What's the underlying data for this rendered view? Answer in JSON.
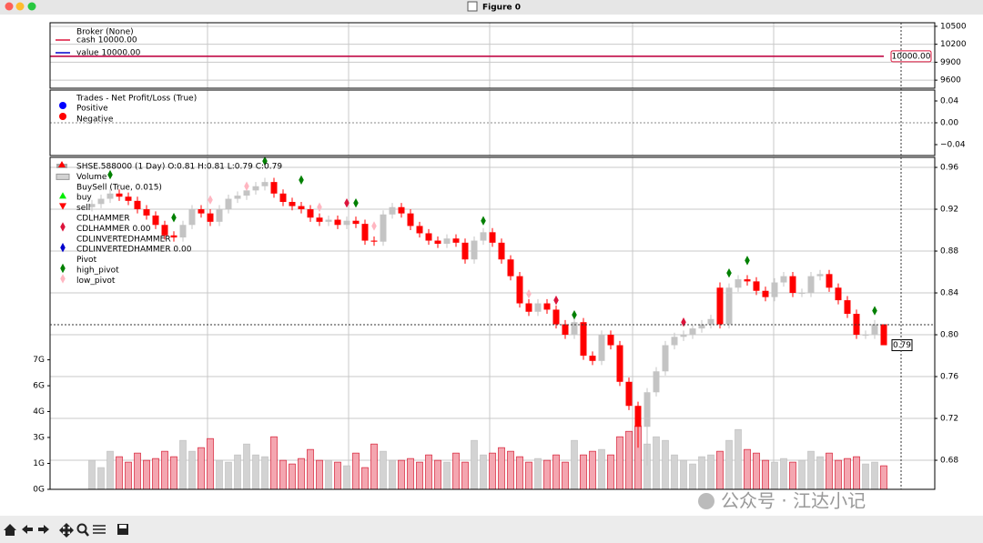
{
  "window": {
    "title": "Figure 0"
  },
  "watermark": "公众号 · 江达小记",
  "chart_data": [
    {
      "type": "line",
      "title": "Broker (None)",
      "xlim": [
        -4.6,
        92.6
      ],
      "xticks": [
        12.7,
        28.2,
        43.7,
        59.4,
        74.9
      ],
      "ylim": [
        9465,
        10560
      ],
      "yticks": [
        9600,
        9900,
        10200,
        10500
      ],
      "grid": true,
      "x": [
        0,
        87
      ],
      "series": [
        {
          "name": "cash 10000.00",
          "color": "#dc143c",
          "values": [
            10000,
            10000
          ]
        },
        {
          "name": "value 10000.00",
          "color": "#0000cc",
          "values": [
            10000,
            10000
          ]
        }
      ],
      "annotations": [
        {
          "value": 10000,
          "label": "10000.00"
        }
      ]
    },
    {
      "type": "scatter",
      "title": "Trades - Net Profit/Loss (True)",
      "xlim": [
        -4.6,
        92.6
      ],
      "xticks": [
        12.7,
        28.2,
        43.7,
        59.4,
        74.9
      ],
      "ylim": [
        -0.06,
        0.06
      ],
      "yticks": [
        {
          "value": -0.04,
          "label": "−0.04"
        },
        {
          "value": 0,
          "label": "0.00"
        },
        0.04
      ],
      "grid": false,
      "hline": 0,
      "series": [
        {
          "name": "Positive",
          "color": "#0000ff",
          "x": [],
          "values": []
        },
        {
          "name": "Negative",
          "color": "#ff0000",
          "x": [],
          "values": []
        }
      ]
    },
    {
      "type": "candlestick",
      "title": "SHSE.588000 (1 Day) O:0.81 H:0.81 L:0.79 C:0.79",
      "xlim": [
        -4.6,
        92.6
      ],
      "xticks": [
        12.7,
        28.2,
        43.7,
        59.4,
        74.9
      ],
      "ylim": [
        0.6522,
        0.9696
      ],
      "yticks": [
        0.68,
        0.72,
        0.76,
        {
          "value": 0.8,
          "label": "0.80"
        },
        0.84,
        0.88,
        0.92,
        0.96
      ],
      "grid": true,
      "y2lim": [
        0,
        18.3
      ],
      "y2ticks": [
        {
          "value": 0,
          "label": "0G"
        },
        {
          "value": 1.43,
          "label": "1G"
        },
        {
          "value": 2.86,
          "label": "3G"
        },
        {
          "value": 4.29,
          "label": "4G"
        },
        {
          "value": 5.71,
          "label": "6G"
        },
        {
          "value": 7.14,
          "label": "7G"
        }
      ],
      "colors": {
        "up": "#c4c4c4",
        "down": "#ff0000",
        "volume_up": "#d3d3d3",
        "volume_down": "#f4a6b0"
      },
      "ohlc": {
        "open": [
          0.922,
          0.925,
          0.93,
          0.935,
          0.932,
          0.928,
          0.92,
          0.914,
          0.905,
          0.895,
          0.893,
          0.905,
          0.92,
          0.916,
          0.908,
          0.92,
          0.93,
          0.933,
          0.938,
          0.942,
          0.946,
          0.935,
          0.927,
          0.923,
          0.92,
          0.912,
          0.908,
          0.91,
          0.905,
          0.909,
          0.906,
          0.89,
          0.889,
          0.915,
          0.922,
          0.916,
          0.904,
          0.897,
          0.89,
          0.887,
          0.892,
          0.888,
          0.872,
          0.89,
          0.898,
          0.888,
          0.872,
          0.856,
          0.83,
          0.822,
          0.83,
          0.824,
          0.81,
          0.8,
          0.812,
          0.78,
          0.775,
          0.8,
          0.79,
          0.755,
          0.732,
          0.712,
          0.745,
          0.765,
          0.79,
          0.798,
          0.8,
          0.806,
          0.81,
          0.845,
          0.81,
          0.845,
          0.853,
          0.851,
          0.842,
          0.836,
          0.85,
          0.856,
          0.84,
          0.84,
          0.856,
          0.858,
          0.845,
          0.833,
          0.82,
          0.8,
          0.8,
          0.81
        ],
        "high": [
          0.929,
          0.934,
          0.939,
          0.939,
          0.936,
          0.932,
          0.924,
          0.918,
          0.909,
          0.899,
          0.909,
          0.924,
          0.924,
          0.92,
          0.924,
          0.934,
          0.937,
          0.942,
          0.946,
          0.95,
          0.95,
          0.939,
          0.931,
          0.927,
          0.924,
          0.916,
          0.914,
          0.914,
          0.913,
          0.913,
          0.91,
          0.894,
          0.919,
          0.926,
          0.926,
          0.92,
          0.908,
          0.901,
          0.894,
          0.896,
          0.896,
          0.892,
          0.894,
          0.902,
          0.902,
          0.892,
          0.876,
          0.86,
          0.834,
          0.834,
          0.834,
          0.828,
          0.814,
          0.816,
          0.816,
          0.784,
          0.804,
          0.804,
          0.794,
          0.759,
          0.736,
          0.749,
          0.769,
          0.794,
          0.802,
          0.804,
          0.81,
          0.814,
          0.819,
          0.85,
          0.849,
          0.857,
          0.857,
          0.855,
          0.846,
          0.854,
          0.86,
          0.86,
          0.844,
          0.86,
          0.862,
          0.862,
          0.849,
          0.837,
          0.824,
          0.804,
          0.814,
          0.81
        ],
        "low": [
          0.918,
          0.921,
          0.926,
          0.928,
          0.924,
          0.916,
          0.91,
          0.901,
          0.891,
          0.889,
          0.889,
          0.901,
          0.912,
          0.904,
          0.904,
          0.916,
          0.926,
          0.929,
          0.934,
          0.938,
          0.931,
          0.923,
          0.919,
          0.916,
          0.908,
          0.904,
          0.904,
          0.901,
          0.901,
          0.902,
          0.886,
          0.885,
          0.885,
          0.911,
          0.912,
          0.9,
          0.893,
          0.886,
          0.883,
          0.883,
          0.884,
          0.868,
          0.868,
          0.886,
          0.884,
          0.868,
          0.852,
          0.826,
          0.818,
          0.818,
          0.82,
          0.806,
          0.796,
          0.796,
          0.776,
          0.771,
          0.771,
          0.786,
          0.751,
          0.728,
          0.692,
          0.675,
          0.741,
          0.761,
          0.786,
          0.794,
          0.796,
          0.802,
          0.806,
          0.806,
          0.806,
          0.841,
          0.847,
          0.838,
          0.832,
          0.832,
          0.846,
          0.836,
          0.836,
          0.836,
          0.852,
          0.841,
          0.829,
          0.816,
          0.796,
          0.796,
          0.796,
          0.79
        ],
        "close": [
          0.925,
          0.93,
          0.935,
          0.932,
          0.928,
          0.92,
          0.914,
          0.905,
          0.895,
          0.893,
          0.905,
          0.92,
          0.916,
          0.908,
          0.92,
          0.93,
          0.933,
          0.938,
          0.942,
          0.946,
          0.935,
          0.927,
          0.923,
          0.92,
          0.912,
          0.908,
          0.91,
          0.905,
          0.909,
          0.906,
          0.89,
          0.889,
          0.915,
          0.922,
          0.916,
          0.904,
          0.897,
          0.89,
          0.887,
          0.892,
          0.888,
          0.872,
          0.89,
          0.898,
          0.888,
          0.872,
          0.856,
          0.83,
          0.822,
          0.83,
          0.824,
          0.81,
          0.8,
          0.812,
          0.78,
          0.775,
          0.8,
          0.79,
          0.755,
          0.732,
          0.712,
          0.745,
          0.765,
          0.79,
          0.798,
          0.8,
          0.806,
          0.81,
          0.815,
          0.81,
          0.845,
          0.853,
          0.851,
          0.842,
          0.836,
          0.85,
          0.856,
          0.84,
          0.84,
          0.856,
          0.858,
          0.845,
          0.833,
          0.82,
          0.8,
          0.8,
          0.81,
          0.79
        ]
      },
      "volume": {
        "name": "Volume",
        "axis": "y2",
        "values": [
          1.6,
          1.2,
          2.1,
          1.8,
          1.5,
          2.0,
          1.6,
          1.7,
          2.1,
          1.8,
          2.7,
          2.1,
          2.3,
          2.8,
          1.6,
          1.5,
          1.9,
          2.5,
          1.9,
          1.8,
          2.9,
          1.6,
          1.4,
          1.7,
          2.2,
          1.6,
          1.6,
          1.5,
          1.3,
          2.0,
          1.2,
          2.5,
          2.1,
          1.6,
          1.6,
          1.7,
          1.5,
          1.9,
          1.6,
          1.5,
          2.0,
          1.5,
          2.7,
          1.9,
          2.0,
          2.3,
          2.1,
          1.8,
          1.5,
          1.7,
          1.6,
          1.9,
          1.5,
          2.7,
          1.9,
          2.1,
          2.2,
          1.9,
          2.9,
          3.2,
          3.5,
          2.5,
          2.9,
          2.7,
          1.9,
          1.6,
          1.4,
          1.8,
          1.9,
          2.1,
          2.7,
          3.3,
          2.2,
          2.0,
          1.6,
          1.5,
          1.7,
          1.5,
          1.6,
          2.1,
          1.8,
          2.0,
          1.6,
          1.7,
          1.8,
          1.4,
          1.5,
          1.3
        ]
      },
      "indicators": [
        {
          "name": "BuySell (True, 0.015)",
          "series": [
            {
              "name": "buy",
              "color": "#00ee00",
              "marker": "triangle-up",
              "x": [],
              "values": []
            },
            {
              "name": "sell",
              "color": "#ff0000",
              "marker": "triangle-down",
              "x": [],
              "values": []
            }
          ]
        },
        {
          "name": "CDLHAMMER",
          "series": [
            {
              "name": "CDLHAMMER 0.00",
              "color": "#dc143c",
              "marker": "diamond",
              "x": [
                28,
                51,
                65
              ],
              "values": [
                0.926,
                0.833,
                0.812
              ]
            }
          ]
        },
        {
          "name": "CDLINVERTEDHAMMER",
          "series": [
            {
              "name": "CDLINVERTEDHAMMER 0.00",
              "color": "#0000cd",
              "marker": "diamond",
              "x": [],
              "values": []
            }
          ]
        },
        {
          "name": "Pivot",
          "series": [
            {
              "name": "high_pivot",
              "color": "#008000",
              "marker": "diamond",
              "x": [
                2,
                9,
                19,
                23,
                29,
                43,
                53,
                70,
                72,
                86
              ],
              "values": [
                0.953,
                0.912,
                0.966,
                0.948,
                0.926,
                0.909,
                0.819,
                0.859,
                0.871,
                0.823
              ]
            },
            {
              "name": "low_pivot",
              "color": "#ffb6c1",
              "marker": "diamond",
              "x": [
                13,
                17,
                25,
                31,
                48
              ],
              "values": [
                0.929,
                0.942,
                0.922,
                0.904,
                0.839
              ]
            }
          ]
        }
      ]
    }
  ]
}
